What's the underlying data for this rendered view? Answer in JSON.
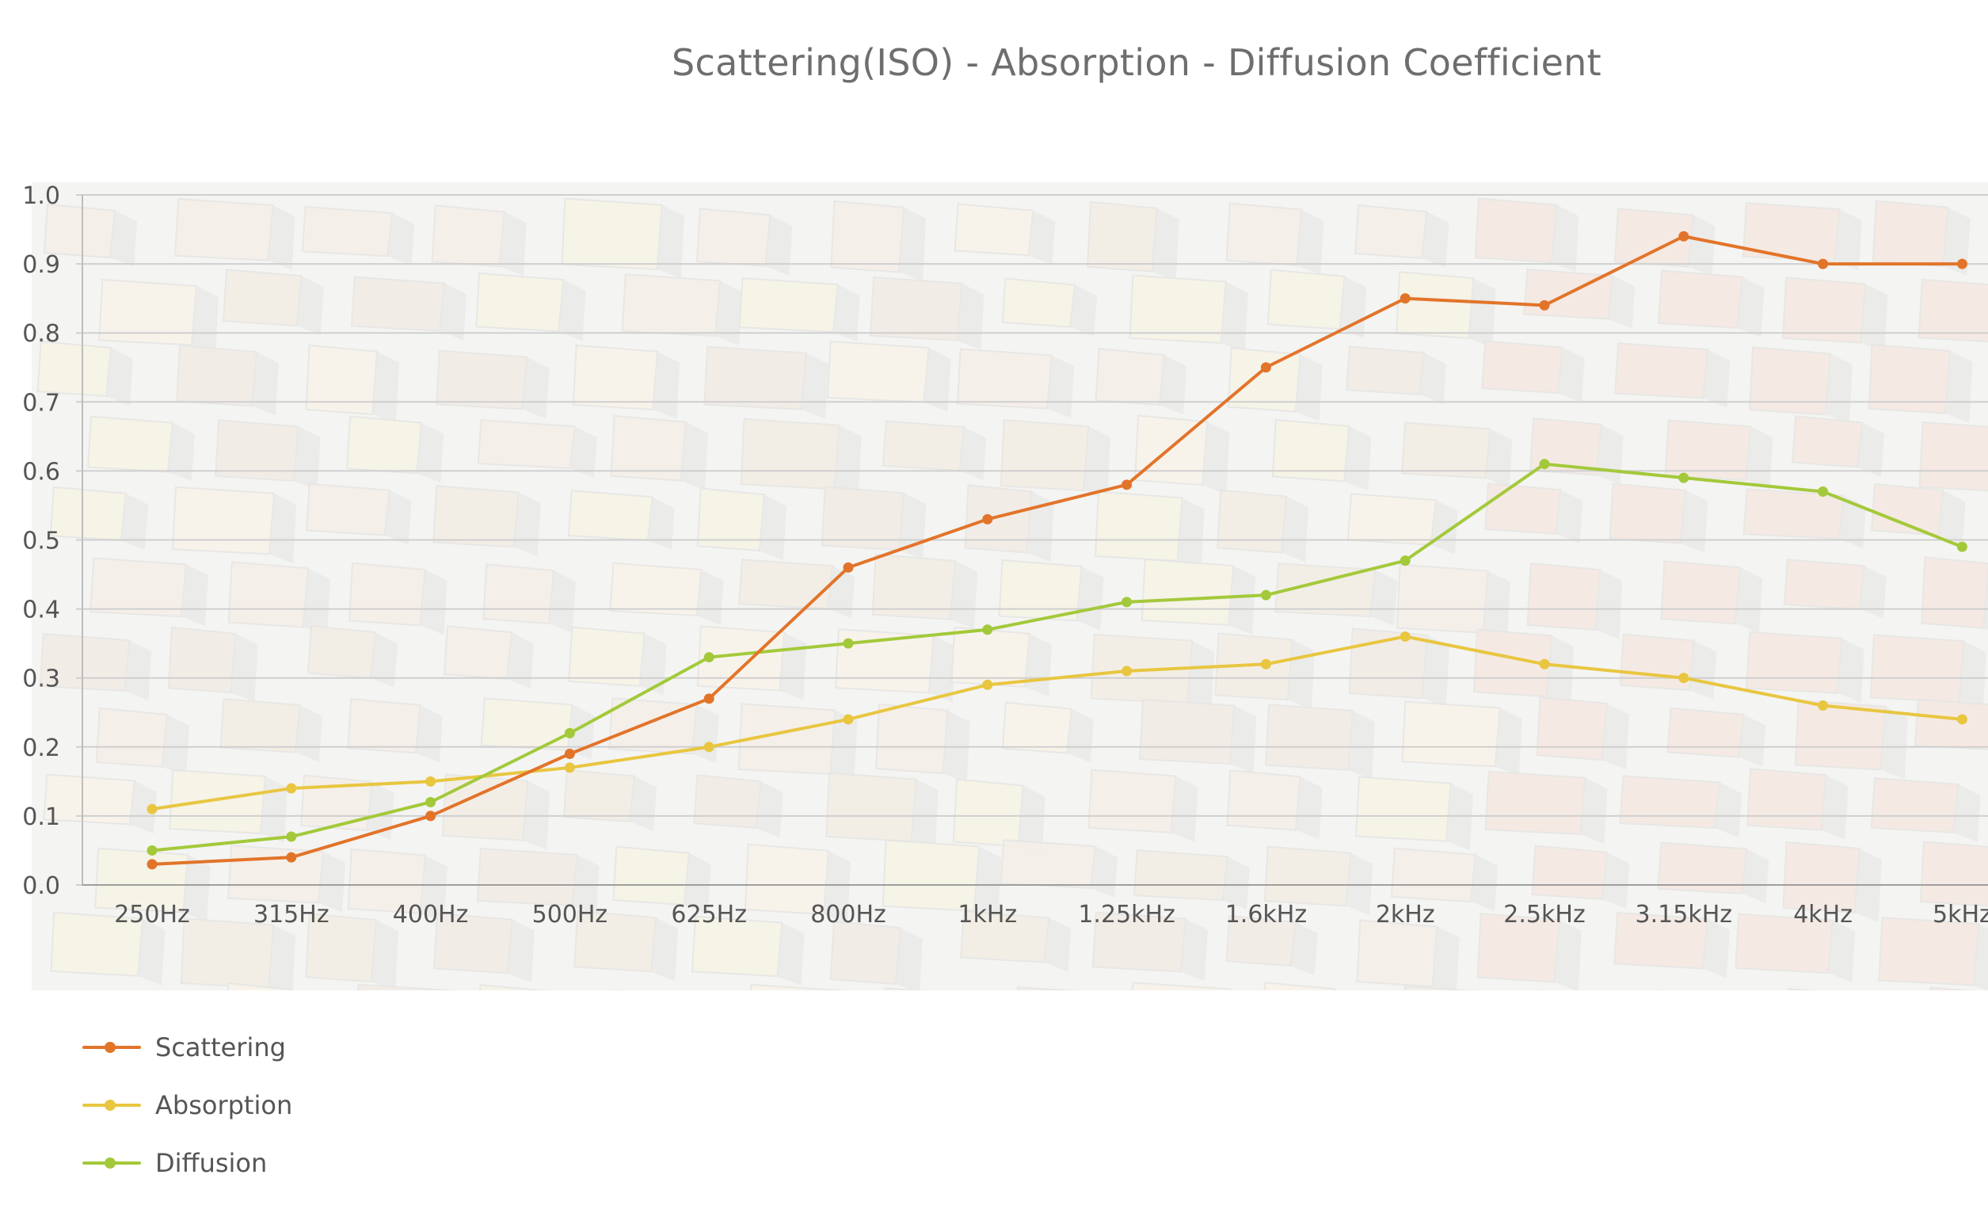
{
  "chart_data": {
    "type": "line",
    "title": "Scattering(ISO) - Absorption - Diffusion Coefficient",
    "xlabel": "",
    "ylabel": "",
    "ylim": [
      0,
      1.0
    ],
    "yticks": [
      "0.0",
      "0.1",
      "0.2",
      "0.3",
      "0.4",
      "0.5",
      "0.6",
      "0.7",
      "0.8",
      "0.9",
      "1.0"
    ],
    "categories": [
      "250Hz",
      "315Hz",
      "400Hz",
      "500Hz",
      "625Hz",
      "800Hz",
      "1kHz",
      "1.25kHz",
      "1.6kHz",
      "2kHz",
      "2.5kHz",
      "3.15kHz",
      "4kHz",
      "5kHz"
    ],
    "grid": true,
    "legend_position": "bottom-left",
    "series": [
      {
        "name": "Scattering",
        "color": "#e2742a",
        "values": [
          0.03,
          0.04,
          0.1,
          0.19,
          0.27,
          0.46,
          0.53,
          0.58,
          0.75,
          0.85,
          0.84,
          0.94,
          0.9,
          0.9
        ]
      },
      {
        "name": "Absorption",
        "color": "#e8c640",
        "values": [
          0.11,
          0.14,
          0.15,
          0.17,
          0.2,
          0.24,
          0.29,
          0.31,
          0.32,
          0.36,
          0.32,
          0.3,
          0.26,
          0.24
        ]
      },
      {
        "name": "Diffusion",
        "color": "#a3c93a",
        "values": [
          0.05,
          0.07,
          0.12,
          0.22,
          0.33,
          0.35,
          0.37,
          0.41,
          0.42,
          0.47,
          0.61,
          0.59,
          0.57,
          0.49
        ]
      }
    ]
  }
}
